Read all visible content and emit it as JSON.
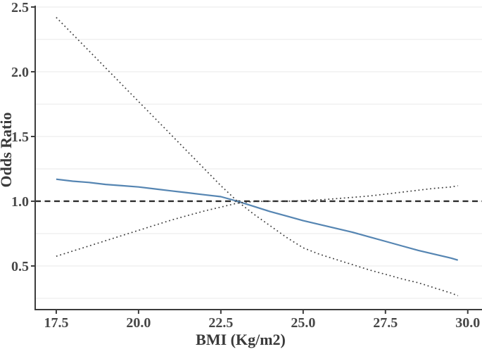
{
  "figure": {
    "background": "#ffffff"
  },
  "chart_data": {
    "type": "line",
    "title": "",
    "xlabel": "BMI (Kg/m2)",
    "ylabel": "Odds Ratio",
    "xlim": [
      16.86,
      30.39
    ],
    "ylim": [
      0.163,
      2.527
    ],
    "grid": {
      "show": true,
      "y_values": [
        0.25,
        0.5,
        0.75,
        1.0,
        1.25,
        1.5,
        1.75,
        2.0,
        2.25,
        2.5
      ],
      "color": "#e9e9e9"
    },
    "xticks": {
      "values": [
        17.5,
        20.0,
        22.5,
        25.0,
        27.5,
        30.0
      ],
      "labels": [
        "17.5",
        "20.0",
        "22.5",
        "25.0",
        "27.5",
        "30.0"
      ]
    },
    "yticks": {
      "values": [
        0.5,
        1.0,
        1.5,
        2.0,
        2.5
      ],
      "labels": [
        "0.5",
        "1.0",
        "1.5",
        "2.0",
        "2.5"
      ]
    },
    "reference_line": {
      "y": 1.0,
      "style": "dashed",
      "color": "#2d2d2d",
      "width": 2.4,
      "dash": "8 5.5"
    },
    "legend": {
      "show": false
    },
    "series": [
      {
        "name": "estimate",
        "style": "solid",
        "color": "#5585b2",
        "width": 2.2,
        "points": [
          [
            17.5,
            1.17
          ],
          [
            18.0,
            1.155
          ],
          [
            18.5,
            1.145
          ],
          [
            19.0,
            1.13
          ],
          [
            19.5,
            1.12
          ],
          [
            20.0,
            1.11
          ],
          [
            20.5,
            1.095
          ],
          [
            21.0,
            1.08
          ],
          [
            21.5,
            1.065
          ],
          [
            22.0,
            1.05
          ],
          [
            22.5,
            1.035
          ],
          [
            23.0,
            1.0
          ],
          [
            23.5,
            0.96
          ],
          [
            24.0,
            0.92
          ],
          [
            24.5,
            0.885
          ],
          [
            25.0,
            0.85
          ],
          [
            25.5,
            0.82
          ],
          [
            26.0,
            0.79
          ],
          [
            26.5,
            0.76
          ],
          [
            27.0,
            0.725
          ],
          [
            27.5,
            0.69
          ],
          [
            28.0,
            0.655
          ],
          [
            28.5,
            0.62
          ],
          [
            29.0,
            0.59
          ],
          [
            29.5,
            0.56
          ],
          [
            29.7,
            0.545
          ]
        ]
      },
      {
        "name": "ci-upper",
        "style": "dotted",
        "color": "#3e3e3e",
        "width": 1.7,
        "points": [
          [
            17.5,
            2.42
          ],
          [
            18.0,
            2.29
          ],
          [
            18.5,
            2.16
          ],
          [
            19.0,
            2.03
          ],
          [
            19.5,
            1.9
          ],
          [
            20.0,
            1.77
          ],
          [
            20.5,
            1.64
          ],
          [
            21.0,
            1.51
          ],
          [
            21.5,
            1.38
          ],
          [
            22.0,
            1.25
          ],
          [
            22.5,
            1.12
          ],
          [
            23.0,
            1.0
          ],
          [
            23.5,
            0.9
          ],
          [
            24.0,
            0.81
          ],
          [
            24.5,
            0.72
          ],
          [
            25.0,
            0.64
          ],
          [
            25.5,
            0.59
          ],
          [
            26.0,
            0.55
          ],
          [
            26.5,
            0.51
          ],
          [
            27.0,
            0.47
          ],
          [
            27.5,
            0.435
          ],
          [
            28.0,
            0.4
          ],
          [
            28.5,
            0.37
          ],
          [
            29.0,
            0.33
          ],
          [
            29.5,
            0.29
          ],
          [
            29.7,
            0.27
          ]
        ]
      },
      {
        "name": "ci-lower",
        "style": "dotted",
        "color": "#3e3e3e",
        "width": 1.7,
        "points": [
          [
            17.5,
            0.575
          ],
          [
            18.0,
            0.615
          ],
          [
            18.5,
            0.655
          ],
          [
            19.0,
            0.695
          ],
          [
            19.5,
            0.735
          ],
          [
            20.0,
            0.775
          ],
          [
            20.5,
            0.815
          ],
          [
            21.0,
            0.855
          ],
          [
            21.5,
            0.89
          ],
          [
            22.0,
            0.925
          ],
          [
            22.5,
            0.955
          ],
          [
            23.0,
            0.985
          ],
          [
            23.5,
            0.998
          ],
          [
            24.0,
            1.0
          ],
          [
            24.5,
            1.0
          ],
          [
            25.0,
            1.005
          ],
          [
            25.5,
            1.01
          ],
          [
            26.0,
            1.02
          ],
          [
            26.5,
            1.03
          ],
          [
            27.0,
            1.04
          ],
          [
            27.5,
            1.055
          ],
          [
            28.0,
            1.07
          ],
          [
            28.5,
            1.085
          ],
          [
            29.0,
            1.1
          ],
          [
            29.5,
            1.11
          ],
          [
            29.7,
            1.12
          ]
        ]
      }
    ],
    "colors": {
      "axis": "#3c3c3c",
      "tick_label": "#474747",
      "axis_title": "#393939",
      "background": "#ffffff"
    }
  }
}
